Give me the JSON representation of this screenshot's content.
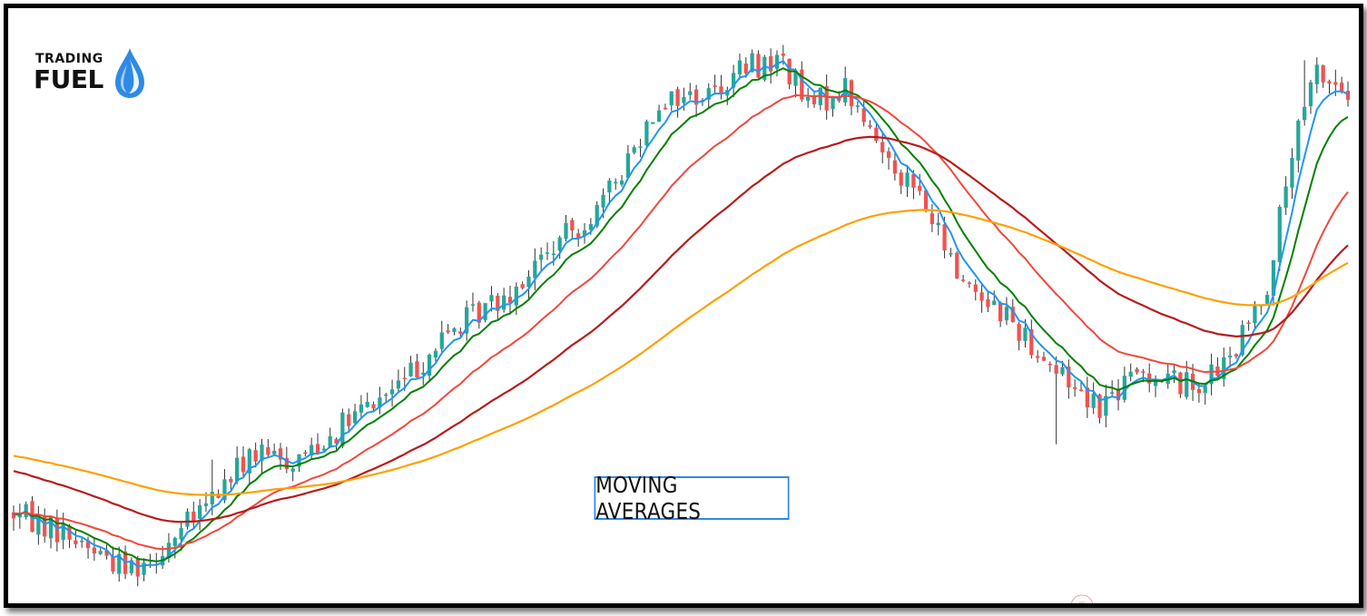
{
  "logo": {
    "line1": "TRADING",
    "line2": "FUEL",
    "brand_color": "#2f8ae6",
    "icon": "water-drop-icon"
  },
  "chart_data": {
    "type": "candlestick",
    "title": "MOVING AVERAGES",
    "grid": false,
    "legend": "none",
    "num_candles": 216,
    "colors": {
      "up": "#26a69a",
      "down": "#ef5350",
      "ma_fast": "#2196f3",
      "ma_mid": "#008000",
      "ma_slow": "#f2473d",
      "ma_long": "#b71c1c",
      "ma_longest": "#ffa000"
    },
    "price_path": [
      [
        0,
        0.32
      ],
      [
        8,
        0.23
      ],
      [
        18,
        0.06
      ],
      [
        22,
        0.1
      ],
      [
        30,
        0.32
      ],
      [
        38,
        0.6
      ],
      [
        45,
        0.57
      ],
      [
        55,
        0.78
      ],
      [
        62,
        0.93
      ],
      [
        70,
        1.18
      ],
      [
        80,
        1.39
      ],
      [
        88,
        1.62
      ],
      [
        95,
        1.8
      ],
      [
        104,
        2.3
      ],
      [
        112,
        2.33
      ],
      [
        118,
        2.46
      ],
      [
        124,
        2.49
      ],
      [
        128,
        2.26
      ],
      [
        134,
        2.36
      ],
      [
        138,
        2.14
      ],
      [
        146,
        1.84
      ],
      [
        152,
        1.47
      ],
      [
        160,
        1.27
      ],
      [
        168,
        1.0
      ],
      [
        175,
        0.84
      ],
      [
        182,
        1.0
      ],
      [
        190,
        0.93
      ],
      [
        196,
        1.04
      ],
      [
        202,
        1.42
      ],
      [
        206,
        2.04
      ],
      [
        210,
        2.44
      ],
      [
        215,
        2.32
      ]
    ],
    "ma_periods": [
      {
        "name": "ma_fast",
        "period": 5
      },
      {
        "name": "ma_mid",
        "period": 10
      },
      {
        "name": "ma_slow",
        "period": 24
      },
      {
        "name": "ma_long",
        "period": 50
      },
      {
        "name": "ma_longest",
        "period": 100
      }
    ]
  },
  "footer": {
    "badge_icon": "circle-badge-icon"
  }
}
